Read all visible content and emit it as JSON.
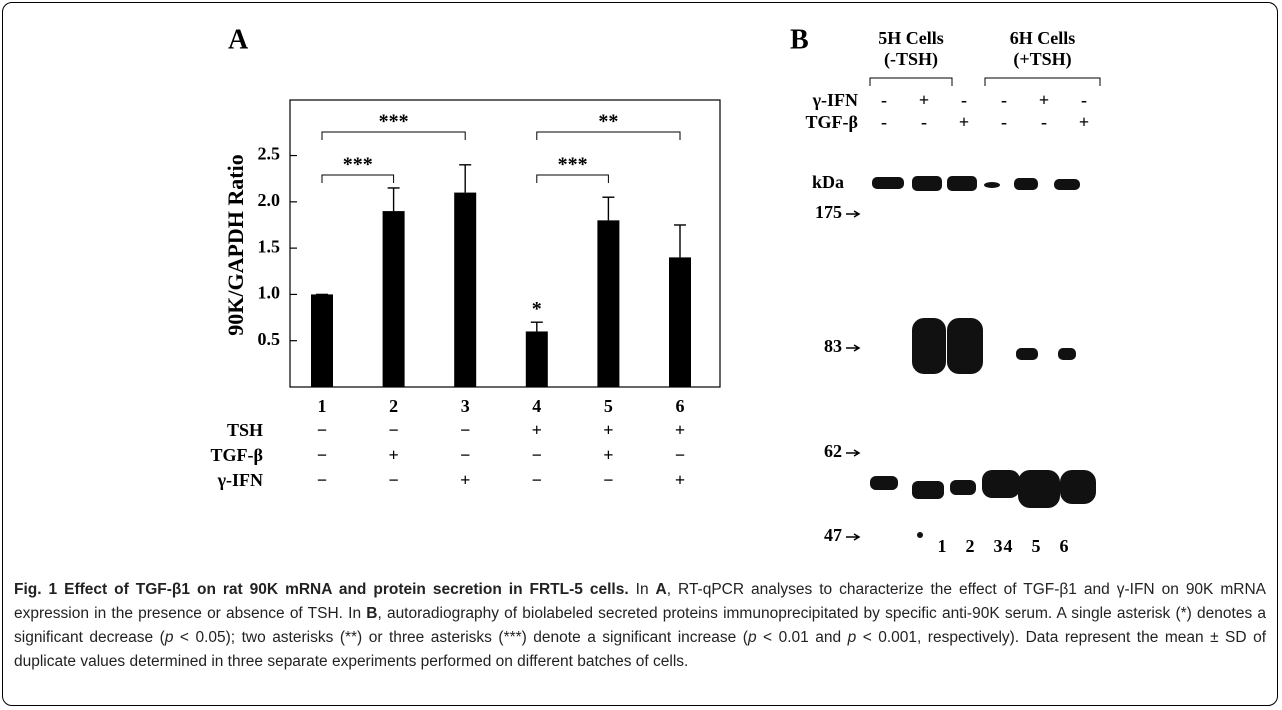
{
  "chart_data": {
    "type": "bar",
    "panel": "A",
    "ylabel": "90K/GAPDH Ratio",
    "categories": [
      "1",
      "2",
      "3",
      "4",
      "5",
      "6"
    ],
    "values": [
      1.0,
      1.9,
      2.1,
      0.6,
      1.8,
      1.4
    ],
    "errors": [
      0,
      0.25,
      0.3,
      0.1,
      0.25,
      0.35
    ],
    "color": "#000000",
    "ylim": [
      0,
      3.1
    ],
    "yticks": [
      0.5,
      {
        "value": 1,
        "label": "1.0"
      },
      1.5,
      {
        "value": 2,
        "label": "2.0"
      },
      2.5
    ],
    "significance": [
      "***",
      "***",
      "***",
      "**"
    ],
    "single_asterisk": "*",
    "conditions": [
      {
        "name": "TSH",
        "signs": [
          "−",
          "−",
          "−",
          "+",
          "+",
          "+"
        ]
      },
      {
        "name": "TGF-β",
        "signs": [
          "−",
          "+",
          "−",
          "−",
          "+",
          "−"
        ]
      },
      {
        "name": "γ-IFN",
        "signs": [
          "−",
          "−",
          "+",
          "−",
          "−",
          "+"
        ]
      }
    ]
  },
  "blot": {
    "panel": "B",
    "groups": [
      [
        "5H Cells",
        "(-TSH)"
      ],
      [
        "6H Cells",
        "(+TSH)"
      ]
    ],
    "rows": [
      {
        "name": "γ-IFN",
        "signs": [
          "-",
          "+",
          "-",
          "-",
          "+",
          "-"
        ]
      },
      {
        "name": "TGF-β",
        "signs": [
          "-",
          "-",
          "+",
          "-",
          "-",
          "+"
        ]
      }
    ],
    "unit": "kDa",
    "markers": [
      "175",
      "83",
      "62",
      "47"
    ],
    "lanes": [
      "1",
      "2",
      "3",
      "4",
      "5",
      "6"
    ]
  },
  "caption": {
    "runs": [
      "Fig. 1 Effect of TGF-β1 on rat 90K mRNA and protein secretion in FRTL-5 cells.",
      " In ",
      "A",
      ", RT-qPCR analyses to characterize the effect of TGF-β1 and γ-IFN on 90K mRNA expression in the presence or absence of TSH. In ",
      "B",
      ", autoradiography of biolabeled secreted proteins immunoprecipitated by specific anti-90K serum. A single asterisk (*) denotes a significant decrease (",
      "p",
      " < 0.05); two asterisks (**) or three asterisks (***) denote a significant increase (",
      "p",
      " < 0.01 and ",
      "p",
      " < 0.001, respectively). Data represent the mean ± SD of duplicate values determined in three separate experiments performed on different batches of cells."
    ]
  }
}
